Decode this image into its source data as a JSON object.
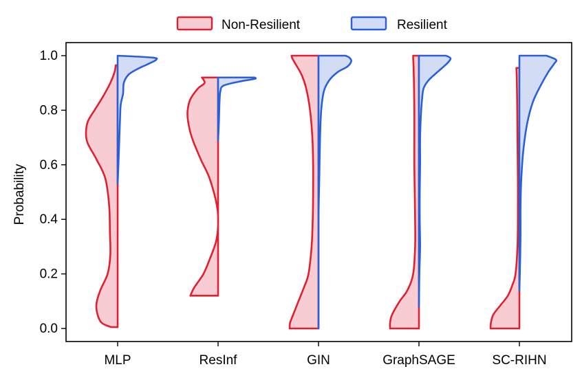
{
  "chart_data": {
    "type": "split-violin",
    "title": "",
    "xlabel": "",
    "ylabel": "Probability",
    "ylim": [
      0.0,
      1.0
    ],
    "yticks": [
      "0.0",
      "0.2",
      "0.4",
      "0.6",
      "0.8",
      "1.0"
    ],
    "categories": [
      "MLP",
      "ResInf",
      "GIN",
      "GraphSAGE",
      "SC-RIHN"
    ],
    "legend": {
      "placement": "top-center",
      "entries": [
        {
          "name": "Non-Resilient",
          "side": "left"
        },
        {
          "name": "Resilient",
          "side": "right"
        }
      ]
    },
    "colors": {
      "non_resilient_line": "#e0202f",
      "non_resilient_fill": "#f7cdd3",
      "resilient_line": "#2a5fd8",
      "resilient_fill": "#d3dcf5"
    },
    "violins": [
      {
        "category": "MLP",
        "non_resilient": {
          "range": [
            0.005,
            0.965
          ],
          "density": [
            [
              0.005,
              0.17
            ],
            [
              0.02,
              0.41
            ],
            [
              0.05,
              0.52
            ],
            [
              0.09,
              0.55
            ],
            [
              0.14,
              0.45
            ],
            [
              0.2,
              0.26
            ],
            [
              0.27,
              0.19
            ],
            [
              0.35,
              0.2
            ],
            [
              0.45,
              0.22
            ],
            [
              0.55,
              0.32
            ],
            [
              0.62,
              0.55
            ],
            [
              0.68,
              0.78
            ],
            [
              0.72,
              0.82
            ],
            [
              0.76,
              0.77
            ],
            [
              0.8,
              0.6
            ],
            [
              0.85,
              0.38
            ],
            [
              0.9,
              0.19
            ],
            [
              0.94,
              0.08
            ],
            [
              0.965,
              0.05
            ]
          ]
        },
        "resilient": {
          "range": [
            0.53,
            1.0
          ],
          "density": [
            [
              0.53,
              0.0
            ],
            [
              0.6,
              0.02
            ],
            [
              0.68,
              0.04
            ],
            [
              0.76,
              0.06
            ],
            [
              0.82,
              0.08
            ],
            [
              0.86,
              0.14
            ],
            [
              0.9,
              0.16
            ],
            [
              0.93,
              0.28
            ],
            [
              0.95,
              0.5
            ],
            [
              0.97,
              0.8
            ],
            [
              0.985,
              1.0
            ],
            [
              0.993,
              0.9
            ],
            [
              1.0,
              0.0
            ]
          ]
        }
      },
      {
        "category": "ResInf",
        "non_resilient": {
          "range": [
            0.12,
            0.92
          ],
          "density": [
            [
              0.12,
              0.72
            ],
            [
              0.15,
              0.62
            ],
            [
              0.2,
              0.38
            ],
            [
              0.26,
              0.2
            ],
            [
              0.32,
              0.05
            ],
            [
              0.38,
              0.0
            ],
            [
              0.45,
              0.03
            ],
            [
              0.55,
              0.22
            ],
            [
              0.62,
              0.45
            ],
            [
              0.7,
              0.68
            ],
            [
              0.76,
              0.78
            ],
            [
              0.8,
              0.79
            ],
            [
              0.84,
              0.72
            ],
            [
              0.88,
              0.52
            ],
            [
              0.9,
              0.35
            ],
            [
              0.92,
              0.42
            ]
          ]
        },
        "resilient": {
          "range": [
            0.69,
            0.92
          ],
          "density": [
            [
              0.69,
              0.0
            ],
            [
              0.75,
              0.02
            ],
            [
              0.8,
              0.03
            ],
            [
              0.84,
              0.04
            ],
            [
              0.87,
              0.06
            ],
            [
              0.89,
              0.14
            ],
            [
              0.905,
              0.55
            ],
            [
              0.915,
              0.95
            ],
            [
              0.92,
              0.95
            ]
          ]
        }
      },
      {
        "category": "GIN",
        "non_resilient": {
          "range": [
            0.0,
            1.0
          ],
          "density": [
            [
              0.0,
              0.75
            ],
            [
              0.02,
              0.74
            ],
            [
              0.05,
              0.66
            ],
            [
              0.1,
              0.52
            ],
            [
              0.15,
              0.38
            ],
            [
              0.2,
              0.26
            ],
            [
              0.3,
              0.18
            ],
            [
              0.4,
              0.15
            ],
            [
              0.5,
              0.14
            ],
            [
              0.6,
              0.14
            ],
            [
              0.7,
              0.16
            ],
            [
              0.8,
              0.22
            ],
            [
              0.88,
              0.32
            ],
            [
              0.93,
              0.44
            ],
            [
              0.97,
              0.6
            ],
            [
              0.99,
              0.68
            ],
            [
              1.0,
              0.7
            ]
          ]
        },
        "resilient": {
          "range": [
            0.0,
            1.0
          ],
          "density": [
            [
              0.0,
              0.0
            ],
            [
              0.2,
              0.0
            ],
            [
              0.4,
              0.0
            ],
            [
              0.55,
              0.02
            ],
            [
              0.7,
              0.04
            ],
            [
              0.8,
              0.07
            ],
            [
              0.87,
              0.14
            ],
            [
              0.91,
              0.28
            ],
            [
              0.94,
              0.5
            ],
            [
              0.96,
              0.75
            ],
            [
              0.98,
              0.85
            ],
            [
              0.993,
              0.8
            ],
            [
              1.0,
              0.7
            ]
          ]
        }
      },
      {
        "category": "GraphSAGE",
        "non_resilient": {
          "range": [
            0.0,
            1.0
          ],
          "density": [
            [
              0.0,
              0.75
            ],
            [
              0.02,
              0.75
            ],
            [
              0.05,
              0.7
            ],
            [
              0.1,
              0.5
            ],
            [
              0.14,
              0.3
            ],
            [
              0.2,
              0.15
            ],
            [
              0.3,
              0.1
            ],
            [
              0.4,
              0.1
            ],
            [
              0.5,
              0.11
            ],
            [
              0.6,
              0.12
            ],
            [
              0.7,
              0.12
            ],
            [
              0.8,
              0.12
            ],
            [
              0.9,
              0.13
            ],
            [
              0.96,
              0.14
            ],
            [
              0.99,
              0.15
            ],
            [
              1.0,
              0.15
            ]
          ]
        },
        "resilient": {
          "range": [
            0.08,
            1.0
          ],
          "density": [
            [
              0.08,
              0.0
            ],
            [
              0.2,
              0.01
            ],
            [
              0.3,
              0.03
            ],
            [
              0.4,
              0.02
            ],
            [
              0.5,
              0.02
            ],
            [
              0.6,
              0.03
            ],
            [
              0.7,
              0.03
            ],
            [
              0.78,
              0.05
            ],
            [
              0.84,
              0.08
            ],
            [
              0.88,
              0.12
            ],
            [
              0.91,
              0.25
            ],
            [
              0.94,
              0.48
            ],
            [
              0.97,
              0.72
            ],
            [
              0.99,
              0.82
            ],
            [
              1.0,
              0.7
            ]
          ]
        }
      },
      {
        "category": "SC-RIHN",
        "non_resilient": {
          "range": [
            0.0,
            0.955
          ],
          "density": [
            [
              0.0,
              0.75
            ],
            [
              0.02,
              0.74
            ],
            [
              0.05,
              0.68
            ],
            [
              0.08,
              0.52
            ],
            [
              0.12,
              0.3
            ],
            [
              0.16,
              0.18
            ],
            [
              0.2,
              0.1
            ],
            [
              0.3,
              0.05
            ],
            [
              0.4,
              0.04
            ],
            [
              0.55,
              0.04
            ],
            [
              0.7,
              0.05
            ],
            [
              0.85,
              0.06
            ],
            [
              0.93,
              0.07
            ],
            [
              0.955,
              0.08
            ]
          ]
        },
        "resilient": {
          "range": [
            0.14,
            1.0
          ],
          "density": [
            [
              0.14,
              0.0
            ],
            [
              0.25,
              0.02
            ],
            [
              0.35,
              0.03
            ],
            [
              0.45,
              0.03
            ],
            [
              0.55,
              0.05
            ],
            [
              0.65,
              0.1
            ],
            [
              0.75,
              0.2
            ],
            [
              0.83,
              0.35
            ],
            [
              0.89,
              0.55
            ],
            [
              0.94,
              0.75
            ],
            [
              0.97,
              0.9
            ],
            [
              0.985,
              0.95
            ],
            [
              1.0,
              0.7
            ]
          ]
        }
      }
    ]
  }
}
